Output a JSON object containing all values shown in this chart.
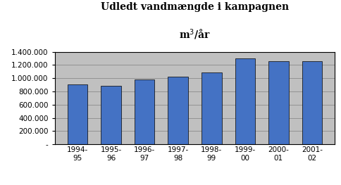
{
  "title_line1": "Udledt vandmængde i kampagnen",
  "title_line2": "m$^3$/år",
  "categories": [
    "1994-\n95",
    "1995-\n96",
    "1996-\n97",
    "1997-\n98",
    "1998-\n99",
    "1999-\n00",
    "2000-\n01",
    "2001-\n02"
  ],
  "values": [
    910000,
    890000,
    980000,
    1020000,
    1090000,
    1300000,
    1260000,
    1255000
  ],
  "bar_color": "#4472C4",
  "bar_edge_color": "#000000",
  "plot_bg_color": "#C0C0C0",
  "outer_bg_color": "#FFFFFF",
  "ylim": [
    0,
    1400000
  ],
  "ytick_step": 200000,
  "grid_color": "#808080",
  "title_fontsize": 10,
  "subtitle_fontsize": 10,
  "tick_fontsize": 7.5,
  "bar_width": 0.6
}
